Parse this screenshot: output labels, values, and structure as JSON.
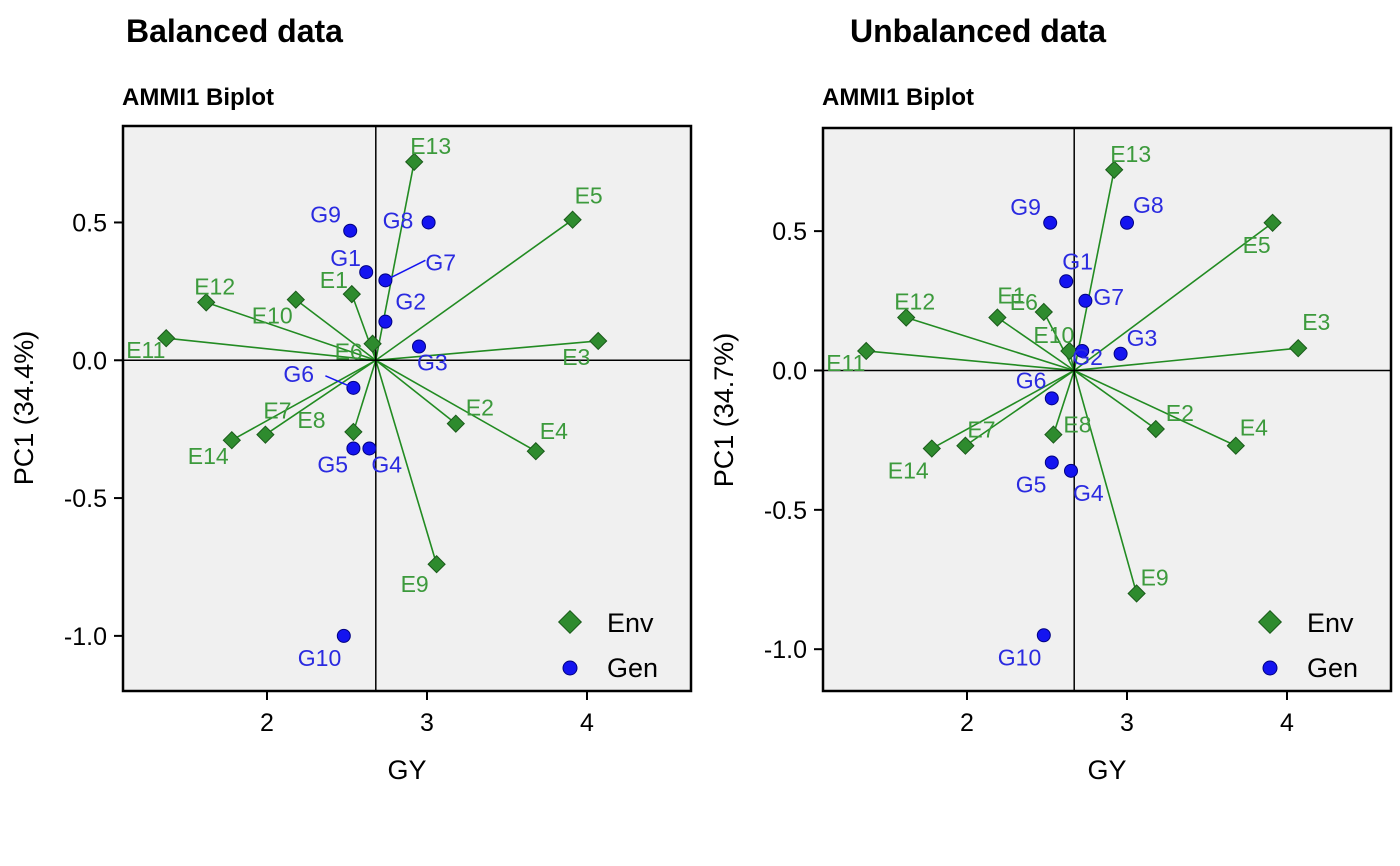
{
  "colors": {
    "env": "#228B22",
    "env_fill": "#2E8B2E",
    "env_label": "#3C9A3C",
    "gen": "#1414F0",
    "gen_label": "#2A2AE0",
    "panel_bg": "#F0F0F0"
  },
  "chart_data": [
    {
      "type": "scatter",
      "title": "Balanced data",
      "subtitle": "AMMI1 Biplot",
      "xlabel": "GY",
      "ylabel": "PC1 (34.4%)",
      "xlim": [
        1.1,
        4.65
      ],
      "ylim": [
        -1.2,
        0.85
      ],
      "xticks": [
        "2",
        "3",
        "4"
      ],
      "yticks": [
        "0.5",
        "0.0",
        "-0.5",
        "-1.0"
      ],
      "mean_gy": 2.68,
      "grid": false,
      "legend": {
        "position": "bottom-right",
        "items": [
          "Env",
          "Gen"
        ]
      },
      "environments": [
        {
          "name": "E1",
          "x": 2.53,
          "y": 0.24
        },
        {
          "name": "E2",
          "x": 3.18,
          "y": -0.23
        },
        {
          "name": "E3",
          "x": 4.07,
          "y": 0.07
        },
        {
          "name": "E4",
          "x": 3.68,
          "y": -0.33
        },
        {
          "name": "E5",
          "x": 3.91,
          "y": 0.51
        },
        {
          "name": "E6",
          "x": 2.66,
          "y": 0.06
        },
        {
          "name": "E7",
          "x": 1.99,
          "y": -0.27
        },
        {
          "name": "E8",
          "x": 2.54,
          "y": -0.26
        },
        {
          "name": "E9",
          "x": 3.06,
          "y": -0.74
        },
        {
          "name": "E10",
          "x": 2.18,
          "y": 0.22
        },
        {
          "name": "E11",
          "x": 1.37,
          "y": 0.08
        },
        {
          "name": "E12",
          "x": 1.62,
          "y": 0.21
        },
        {
          "name": "E13",
          "x": 2.92,
          "y": 0.72
        },
        {
          "name": "E14",
          "x": 1.78,
          "y": -0.29
        }
      ],
      "genotypes": [
        {
          "name": "G1",
          "x": 2.62,
          "y": 0.32
        },
        {
          "name": "G2",
          "x": 2.74,
          "y": 0.14
        },
        {
          "name": "G3",
          "x": 2.95,
          "y": 0.05
        },
        {
          "name": "G4",
          "x": 2.64,
          "y": -0.32
        },
        {
          "name": "G5",
          "x": 2.54,
          "y": -0.32
        },
        {
          "name": "G6",
          "x": 2.54,
          "y": -0.1
        },
        {
          "name": "G7",
          "x": 2.74,
          "y": 0.29
        },
        {
          "name": "G8",
          "x": 3.01,
          "y": 0.5
        },
        {
          "name": "G9",
          "x": 2.52,
          "y": 0.47
        },
        {
          "name": "G10",
          "x": 2.48,
          "y": -1.0
        }
      ]
    },
    {
      "type": "scatter",
      "title": "Unbalanced data",
      "subtitle": "AMMI1 Biplot",
      "xlabel": "GY",
      "ylabel": "PC1 (34.7%)",
      "xlim": [
        1.1,
        4.65
      ],
      "ylim": [
        -1.15,
        0.87
      ],
      "xticks": [
        "2",
        "3",
        "4"
      ],
      "yticks": [
        "0.5",
        "0.0",
        "-0.5",
        "-1.0"
      ],
      "mean_gy": 2.67,
      "grid": false,
      "legend": {
        "position": "bottom-right",
        "items": [
          "Env",
          "Gen"
        ]
      },
      "environments": [
        {
          "name": "E1",
          "x": 2.19,
          "y": 0.19
        },
        {
          "name": "E2",
          "x": 3.18,
          "y": -0.21
        },
        {
          "name": "E3",
          "x": 4.07,
          "y": 0.08
        },
        {
          "name": "E4",
          "x": 3.68,
          "y": -0.27
        },
        {
          "name": "E5",
          "x": 3.91,
          "y": 0.53
        },
        {
          "name": "E6",
          "x": 2.48,
          "y": 0.21
        },
        {
          "name": "E7",
          "x": 1.99,
          "y": -0.27
        },
        {
          "name": "E8",
          "x": 2.54,
          "y": -0.23
        },
        {
          "name": "E9",
          "x": 3.06,
          "y": -0.8
        },
        {
          "name": "E10",
          "x": 2.64,
          "y": 0.07
        },
        {
          "name": "E11",
          "x": 1.37,
          "y": 0.07
        },
        {
          "name": "E12",
          "x": 1.62,
          "y": 0.19
        },
        {
          "name": "E13",
          "x": 2.92,
          "y": 0.72
        },
        {
          "name": "E14",
          "x": 1.78,
          "y": -0.28
        }
      ],
      "genotypes": [
        {
          "name": "G1",
          "x": 2.62,
          "y": 0.32
        },
        {
          "name": "G2",
          "x": 2.72,
          "y": 0.07
        },
        {
          "name": "G3",
          "x": 2.96,
          "y": 0.06
        },
        {
          "name": "G4",
          "x": 2.65,
          "y": -0.36
        },
        {
          "name": "G5",
          "x": 2.53,
          "y": -0.33
        },
        {
          "name": "G6",
          "x": 2.53,
          "y": -0.1
        },
        {
          "name": "G7",
          "x": 2.74,
          "y": 0.25
        },
        {
          "name": "G8",
          "x": 3.0,
          "y": 0.53
        },
        {
          "name": "G9",
          "x": 2.52,
          "y": 0.53
        },
        {
          "name": "G10",
          "x": 2.48,
          "y": -0.95
        }
      ]
    }
  ]
}
